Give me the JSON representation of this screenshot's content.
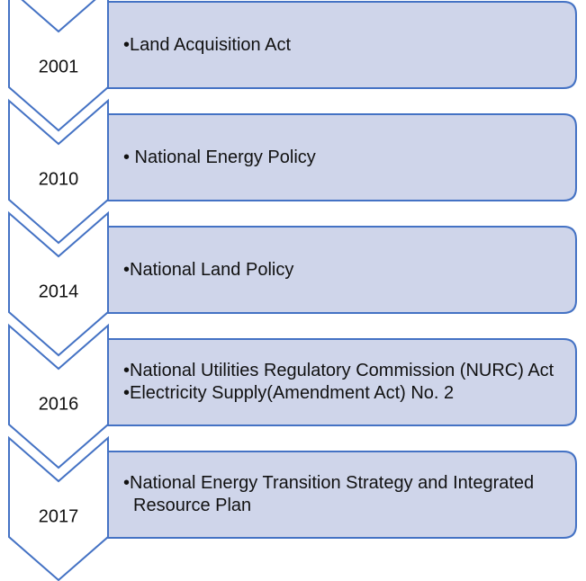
{
  "items": [
    {
      "year": "2001",
      "bullets": [
        "•Land Acquisition Act"
      ]
    },
    {
      "year": "2010",
      "bullets": [
        "• National Energy Policy"
      ]
    },
    {
      "year": "2014",
      "bullets": [
        "•National Land Policy"
      ]
    },
    {
      "year": "2016",
      "bullets": [
        "•National Utilities Regulatory Commission (NURC) Act",
        "•Electricity Supply(Amendment Act) No. 2"
      ]
    },
    {
      "year": "2017",
      "bullets": [
        "•National Energy Transition Strategy and Integrated Resource Plan"
      ]
    }
  ]
}
